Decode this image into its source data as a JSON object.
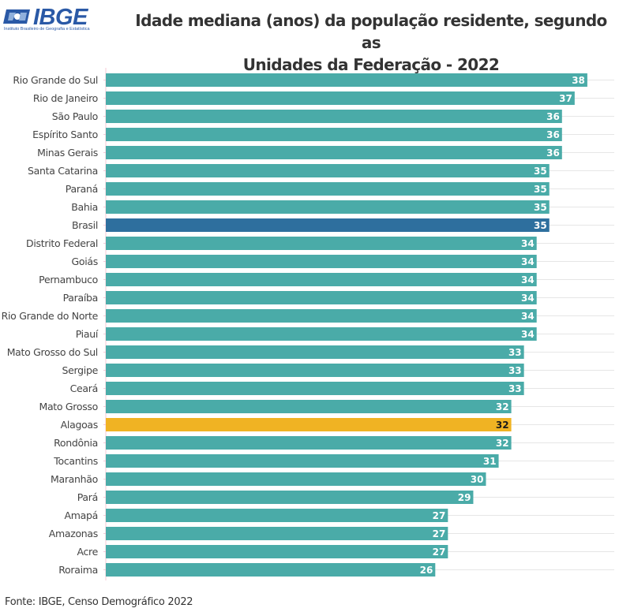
{
  "header": {
    "logo_text": "IBGE",
    "logo_subtitle": "Instituto Brasileiro de Geografia e Estatística",
    "title_line1": "Idade mediana (anos) da população residente, segundo as",
    "title_line2": "Unidades da Federação - 2022"
  },
  "footer": {
    "source": "Fonte: IBGE, Censo Demográfico 2022"
  },
  "colors": {
    "default_bar": "#4aaba8",
    "brasil_bar": "#2e6f9e",
    "highlight_bar": "#f0b323",
    "gridline": "#e6e6e6",
    "logo": "#2a59a6"
  },
  "chart_data": {
    "type": "bar",
    "orientation": "horizontal",
    "title": "Idade mediana (anos) da população residente, segundo as Unidades da Federação - 2022",
    "xlabel": "",
    "ylabel": "",
    "xlim": [
      0,
      40
    ],
    "grid": true,
    "categories": [
      "Rio Grande do Sul",
      "Rio de Janeiro",
      "São Paulo",
      "Espírito Santo",
      "Minas Gerais",
      "Santa Catarina",
      "Paraná",
      "Bahia",
      "Brasil",
      "Distrito Federal",
      "Goiás",
      "Pernambuco",
      "Paraíba",
      "Rio Grande do Norte",
      "Piauí",
      "Mato Grosso do Sul",
      "Sergipe",
      "Ceará",
      "Mato Grosso",
      "Alagoas",
      "Rondônia",
      "Tocantins",
      "Maranhão",
      "Pará",
      "Amapá",
      "Amazonas",
      "Acre",
      "Roraima"
    ],
    "values": [
      38,
      37,
      36,
      36,
      36,
      35,
      35,
      35,
      35,
      34,
      34,
      34,
      34,
      34,
      34,
      33,
      33,
      33,
      32,
      32,
      32,
      31,
      30,
      29,
      27,
      27,
      27,
      26
    ],
    "highlights": {
      "Brasil": "brasil_bar",
      "Alagoas": "highlight_bar"
    },
    "data_labels": true
  }
}
